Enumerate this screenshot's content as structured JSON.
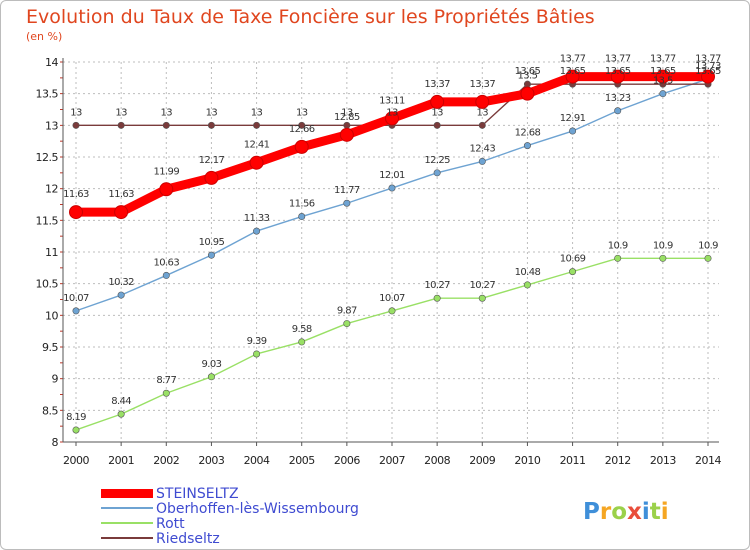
{
  "chart_data": {
    "type": "line",
    "title": "Evolution du Taux de Taxe Foncière sur les Propriétés Bâties",
    "subtitle": "(en %)",
    "x": [
      2000,
      2001,
      2002,
      2003,
      2004,
      2005,
      2006,
      2007,
      2008,
      2009,
      2010,
      2011,
      2012,
      2013,
      2014
    ],
    "x_tick_labels": [
      "2000",
      "2001",
      "2002",
      "2003",
      "2004",
      "2005",
      "2006",
      "2007",
      "2008",
      "2009",
      "2010",
      "2011",
      "2012",
      "2013",
      "2014"
    ],
    "ylim": [
      8,
      14
    ],
    "y_ticks": [
      8,
      8.5,
      9,
      9.5,
      10,
      10.5,
      11,
      11.5,
      12,
      12.5,
      13,
      13.5,
      14
    ],
    "y_tick_labels": [
      "8",
      "8.5",
      "9",
      "9.5",
      "10",
      "10.5",
      "11",
      "11.5",
      "12",
      "12.5",
      "13",
      "13.5",
      "14"
    ],
    "grid": true,
    "legend_position": "bottom-left",
    "series": [
      {
        "name": "STEINSELTZ",
        "color": "#ff0000",
        "weight": "thick",
        "values": [
          11.63,
          11.63,
          11.99,
          12.17,
          12.41,
          12.66,
          12.85,
          13.11,
          13.37,
          13.37,
          13.5,
          13.77,
          13.77,
          13.77,
          13.77
        ],
        "labels": [
          "11.63",
          "11.63",
          "11.99",
          "12.17",
          "12.41",
          "12.66",
          "12.85",
          "13.11",
          "13.37",
          "13.37",
          "13.5",
          "13.77",
          "13.77",
          "13.77",
          "13.77"
        ]
      },
      {
        "name": "Oberhoffen-lès-Wissembourg",
        "color": "#6ea3d2",
        "weight": "thin",
        "values": [
          10.07,
          10.32,
          10.63,
          10.95,
          11.33,
          11.56,
          11.77,
          12.01,
          12.25,
          12.43,
          12.68,
          12.91,
          13.23,
          13.5,
          13.73
        ],
        "labels": [
          "10.07",
          "10.32",
          "10.63",
          "10.95",
          "11.33",
          "11.56",
          "11.77",
          "12.01",
          "12.25",
          "12.43",
          "12.68",
          "12.91",
          "13.23",
          "13.5",
          "13.73"
        ]
      },
      {
        "name": "Rott",
        "color": "#99e065",
        "weight": "thin",
        "values": [
          8.19,
          8.44,
          8.77,
          9.03,
          9.39,
          9.58,
          9.87,
          10.07,
          10.27,
          10.27,
          10.48,
          10.69,
          10.9,
          10.9,
          10.9
        ],
        "labels": [
          "8.19",
          "8.44",
          "8.77",
          "9.03",
          "9.39",
          "9.58",
          "9.87",
          "10.07",
          "10.27",
          "10.27",
          "10.48",
          "10.69",
          "10.9",
          "10.9",
          "10.9"
        ]
      },
      {
        "name": "Riedseltz",
        "color": "#7a3b3b",
        "weight": "thin",
        "values": [
          13,
          13,
          13,
          13,
          13,
          13,
          13,
          13,
          13,
          13,
          13.65,
          13.65,
          13.65,
          13.65,
          13.65
        ],
        "labels": [
          "13",
          "13",
          "13",
          "13",
          "13",
          "13",
          "13",
          "13",
          "13",
          "13",
          "13.65",
          "13.65",
          "13.65",
          "13.65",
          "13.65"
        ]
      }
    ]
  },
  "logo": {
    "letters": [
      "P",
      "r",
      "o",
      "x",
      "i",
      "t",
      "i"
    ],
    "colors": [
      "#3f8fd9",
      "#f5a623",
      "#9bd14a",
      "#e94e3b",
      "#3f8fd9",
      "#9bd14a",
      "#f5a623"
    ]
  }
}
